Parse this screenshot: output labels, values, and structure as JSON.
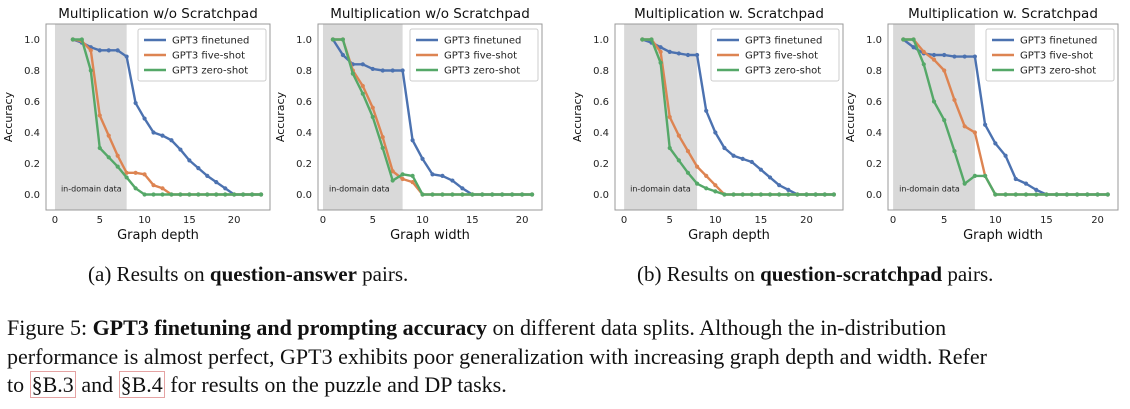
{
  "chart_data": [
    {
      "type": "line",
      "title": "Multiplication w/o Scratchpad",
      "xlabel": "Graph depth",
      "ylabel": "Accuracy",
      "xlim": [
        -1,
        24
      ],
      "ylim": [
        -0.1,
        1.1
      ],
      "xticks": [
        0,
        5,
        10,
        15,
        20
      ],
      "yticks": [
        0.0,
        0.2,
        0.4,
        0.6,
        0.8,
        1.0
      ],
      "shaded_region": {
        "x": [
          0,
          8
        ],
        "label": "in-domain data"
      },
      "grid": false,
      "legend": "top-right",
      "series": [
        {
          "name": "GPT3 finetuned",
          "color": "#4c72b0",
          "x": [
            2,
            3,
            4,
            5,
            6,
            7,
            8,
            9,
            10,
            11,
            12,
            13,
            14,
            15,
            16,
            17,
            18,
            19,
            20,
            21,
            22,
            23
          ],
          "y": [
            1.0,
            0.98,
            0.95,
            0.93,
            0.93,
            0.93,
            0.89,
            0.59,
            0.49,
            0.4,
            0.38,
            0.35,
            0.29,
            0.22,
            0.17,
            0.12,
            0.08,
            0.04,
            0.0,
            0.0,
            0.0,
            0.0
          ]
        },
        {
          "name": "GPT3 five-shot",
          "color": "#dd8452",
          "x": [
            2,
            3,
            4,
            5,
            6,
            7,
            8,
            9,
            10,
            11,
            12,
            13,
            14,
            15,
            16,
            17,
            18,
            19,
            20,
            21,
            22,
            23
          ],
          "y": [
            1.0,
            0.99,
            0.93,
            0.51,
            0.38,
            0.25,
            0.14,
            0.14,
            0.13,
            0.06,
            0.04,
            0.0,
            0.0,
            0.0,
            0.0,
            0.0,
            0.0,
            0.0,
            0.0,
            0.0,
            0.0,
            0.0
          ]
        },
        {
          "name": "GPT3 zero-shot",
          "color": "#55a868",
          "x": [
            2,
            3,
            4,
            5,
            6,
            7,
            8,
            9,
            10,
            11,
            12,
            13,
            14,
            15,
            16,
            17,
            18,
            19,
            20,
            21,
            22,
            23
          ],
          "y": [
            1.0,
            1.0,
            0.8,
            0.3,
            0.24,
            0.18,
            0.11,
            0.04,
            0.0,
            0.0,
            0.0,
            0.0,
            0.0,
            0.0,
            0.0,
            0.0,
            0.0,
            0.0,
            0.0,
            0.0,
            0.0,
            0.0
          ]
        }
      ]
    },
    {
      "type": "line",
      "title": "Multiplication w/o Scratchpad",
      "xlabel": "Graph width",
      "ylabel": "Accuracy",
      "xlim": [
        -0.5,
        22
      ],
      "ylim": [
        -0.1,
        1.1
      ],
      "xticks": [
        0,
        5,
        10,
        15,
        20
      ],
      "yticks": [
        0.0,
        0.2,
        0.4,
        0.6,
        0.8,
        1.0
      ],
      "shaded_region": {
        "x": [
          0,
          8
        ],
        "label": "in-domain data"
      },
      "grid": false,
      "legend": "top-right",
      "series": [
        {
          "name": "GPT3 finetuned",
          "color": "#4c72b0",
          "x": [
            1,
            2,
            3,
            4,
            5,
            6,
            7,
            8,
            9,
            10,
            11,
            12,
            13,
            14,
            15,
            16,
            17,
            18,
            19,
            20,
            21
          ],
          "y": [
            1.0,
            0.9,
            0.84,
            0.84,
            0.81,
            0.8,
            0.8,
            0.8,
            0.35,
            0.23,
            0.13,
            0.12,
            0.09,
            0.04,
            0.0,
            0.0,
            0.0,
            0.0,
            0.0,
            0.0,
            0.0
          ]
        },
        {
          "name": "GPT3 five-shot",
          "color": "#dd8452",
          "x": [
            1,
            2,
            3,
            4,
            5,
            6,
            7,
            8,
            9,
            10,
            11,
            12,
            13,
            14,
            15,
            16,
            17,
            18,
            19,
            20,
            21
          ],
          "y": [
            1.0,
            1.0,
            0.8,
            0.7,
            0.56,
            0.37,
            0.15,
            0.1,
            0.08,
            0.0,
            0.0,
            0.0,
            0.0,
            0.0,
            0.0,
            0.0,
            0.0,
            0.0,
            0.0,
            0.0,
            0.0
          ]
        },
        {
          "name": "GPT3 zero-shot",
          "color": "#55a868",
          "x": [
            1,
            2,
            3,
            4,
            5,
            6,
            7,
            8,
            9,
            10,
            11,
            12,
            13,
            14,
            15,
            16,
            17,
            18,
            19,
            20,
            21
          ],
          "y": [
            1.0,
            1.0,
            0.78,
            0.65,
            0.5,
            0.3,
            0.09,
            0.13,
            0.12,
            0.0,
            0.0,
            0.0,
            0.0,
            0.0,
            0.0,
            0.0,
            0.0,
            0.0,
            0.0,
            0.0,
            0.0
          ]
        }
      ]
    },
    {
      "type": "line",
      "title": "Multiplication w. Scratchpad",
      "xlabel": "Graph depth",
      "ylabel": "Accuracy",
      "xlim": [
        -1,
        24
      ],
      "ylim": [
        -0.1,
        1.1
      ],
      "xticks": [
        0,
        5,
        10,
        15,
        20
      ],
      "yticks": [
        0.0,
        0.2,
        0.4,
        0.6,
        0.8,
        1.0
      ],
      "shaded_region": {
        "x": [
          0,
          8
        ],
        "label": "in-domain data"
      },
      "grid": false,
      "legend": "top-right",
      "series": [
        {
          "name": "GPT3 finetuned",
          "color": "#4c72b0",
          "x": [
            2,
            3,
            4,
            5,
            6,
            7,
            8,
            9,
            10,
            11,
            12,
            13,
            14,
            15,
            16,
            17,
            18,
            19,
            20,
            21,
            22,
            23
          ],
          "y": [
            1.0,
            0.98,
            0.95,
            0.92,
            0.91,
            0.9,
            0.9,
            0.54,
            0.4,
            0.3,
            0.25,
            0.23,
            0.21,
            0.16,
            0.11,
            0.06,
            0.03,
            0.0,
            0.0,
            0.0,
            0.0,
            0.0
          ]
        },
        {
          "name": "GPT3 five-shot",
          "color": "#dd8452",
          "x": [
            2,
            3,
            4,
            5,
            6,
            7,
            8,
            9,
            10,
            11,
            12,
            13,
            14,
            15,
            16,
            17,
            18,
            19,
            20,
            21,
            22,
            23
          ],
          "y": [
            1.0,
            1.0,
            0.92,
            0.5,
            0.38,
            0.28,
            0.18,
            0.12,
            0.06,
            0.0,
            0.0,
            0.0,
            0.0,
            0.0,
            0.0,
            0.0,
            0.0,
            0.0,
            0.0,
            0.0,
            0.0,
            0.0
          ]
        },
        {
          "name": "GPT3 zero-shot",
          "color": "#55a868",
          "x": [
            2,
            3,
            4,
            5,
            6,
            7,
            8,
            9,
            10,
            11,
            12,
            13,
            14,
            15,
            16,
            17,
            18,
            19,
            20,
            21,
            22,
            23
          ],
          "y": [
            1.0,
            1.0,
            0.85,
            0.3,
            0.22,
            0.14,
            0.07,
            0.04,
            0.02,
            0.0,
            0.0,
            0.0,
            0.0,
            0.0,
            0.0,
            0.0,
            0.0,
            0.0,
            0.0,
            0.0,
            0.0,
            0.0
          ]
        }
      ]
    },
    {
      "type": "line",
      "title": "Multiplication w. Scratchpad",
      "xlabel": "Graph width",
      "ylabel": "Accuracy",
      "xlim": [
        -0.5,
        22
      ],
      "ylim": [
        -0.1,
        1.1
      ],
      "xticks": [
        0,
        5,
        10,
        15,
        20
      ],
      "yticks": [
        0.0,
        0.2,
        0.4,
        0.6,
        0.8,
        1.0
      ],
      "shaded_region": {
        "x": [
          0,
          8
        ],
        "label": "in-domain data"
      },
      "grid": false,
      "legend": "top-right",
      "series": [
        {
          "name": "GPT3 finetuned",
          "color": "#4c72b0",
          "x": [
            1,
            2,
            3,
            4,
            5,
            6,
            7,
            8,
            9,
            10,
            11,
            12,
            13,
            14,
            15,
            16,
            17,
            18,
            19,
            20,
            21
          ],
          "y": [
            1.0,
            0.95,
            0.91,
            0.9,
            0.9,
            0.89,
            0.89,
            0.89,
            0.45,
            0.33,
            0.25,
            0.1,
            0.07,
            0.03,
            0.0,
            0.0,
            0.0,
            0.0,
            0.0,
            0.0,
            0.0
          ]
        },
        {
          "name": "GPT3 five-shot",
          "color": "#dd8452",
          "x": [
            1,
            2,
            3,
            4,
            5,
            6,
            7,
            8,
            9,
            10,
            11,
            12,
            13,
            14,
            15,
            16,
            17,
            18,
            19,
            20,
            21
          ],
          "y": [
            1.0,
            1.0,
            0.92,
            0.87,
            0.8,
            0.61,
            0.44,
            0.4,
            0.12,
            0.0,
            0.0,
            0.0,
            0.0,
            0.0,
            0.0,
            0.0,
            0.0,
            0.0,
            0.0,
            0.0,
            0.0
          ]
        },
        {
          "name": "GPT3 zero-shot",
          "color": "#55a868",
          "x": [
            1,
            2,
            3,
            4,
            5,
            6,
            7,
            8,
            9,
            10,
            11,
            12,
            13,
            14,
            15,
            16,
            17,
            18,
            19,
            20,
            21
          ],
          "y": [
            1.0,
            1.0,
            0.84,
            0.6,
            0.48,
            0.28,
            0.07,
            0.12,
            0.12,
            0.0,
            0.0,
            0.0,
            0.0,
            0.0,
            0.0,
            0.0,
            0.0,
            0.0,
            0.0,
            0.0,
            0.0
          ]
        }
      ]
    }
  ],
  "captions": {
    "a_prefix": "(a) Results on ",
    "a_bold": "question-answer",
    "a_suffix": " pairs.",
    "b_prefix": "(b) Results on ",
    "b_bold": "question-scratchpad",
    "b_suffix": " pairs."
  },
  "figure_caption": {
    "label": "Figure 5: ",
    "bold": "GPT3 finetuning and prompting accuracy",
    "line1_rest": " on different data splits. Although the in-distribution",
    "line2": "performance is almost perfect, GPT3 exhibits poor generalization with increasing graph depth and width. Refer",
    "line3_prefix": "to ",
    "ref1": "§B.3",
    "line3_mid": " and ",
    "ref2": "§B.4",
    "line3_suffix": " for results on the puzzle and DP tasks."
  }
}
